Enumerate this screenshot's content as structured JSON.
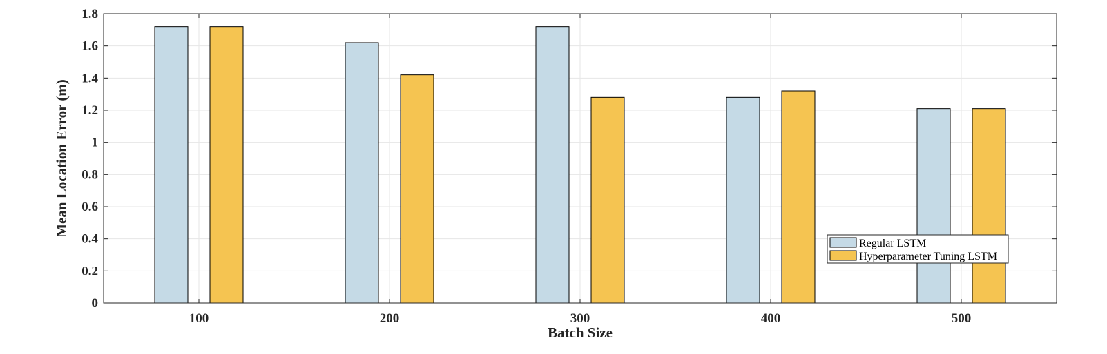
{
  "chart_data": {
    "type": "bar",
    "categories": [
      "100",
      "200",
      "300",
      "400",
      "500"
    ],
    "series": [
      {
        "name": "Regular LSTM",
        "color": "#c5dae6",
        "values": [
          1.72,
          1.62,
          1.72,
          1.28,
          1.21
        ]
      },
      {
        "name": "Hyperparameter Tuning LSTM",
        "color": "#f5c451",
        "values": [
          1.72,
          1.42,
          1.28,
          1.32,
          1.21
        ]
      }
    ],
    "title": "",
    "xlabel": "Batch Size",
    "ylabel": "Mean Location Error (m)",
    "ylim": [
      0,
      1.8
    ],
    "yticks": [
      "0",
      "0.2",
      "0.4",
      "0.6",
      "0.8",
      "1",
      "1.2",
      "1.4",
      "1.6",
      "1.8"
    ],
    "grid": true,
    "legend_position": "lower-right"
  }
}
